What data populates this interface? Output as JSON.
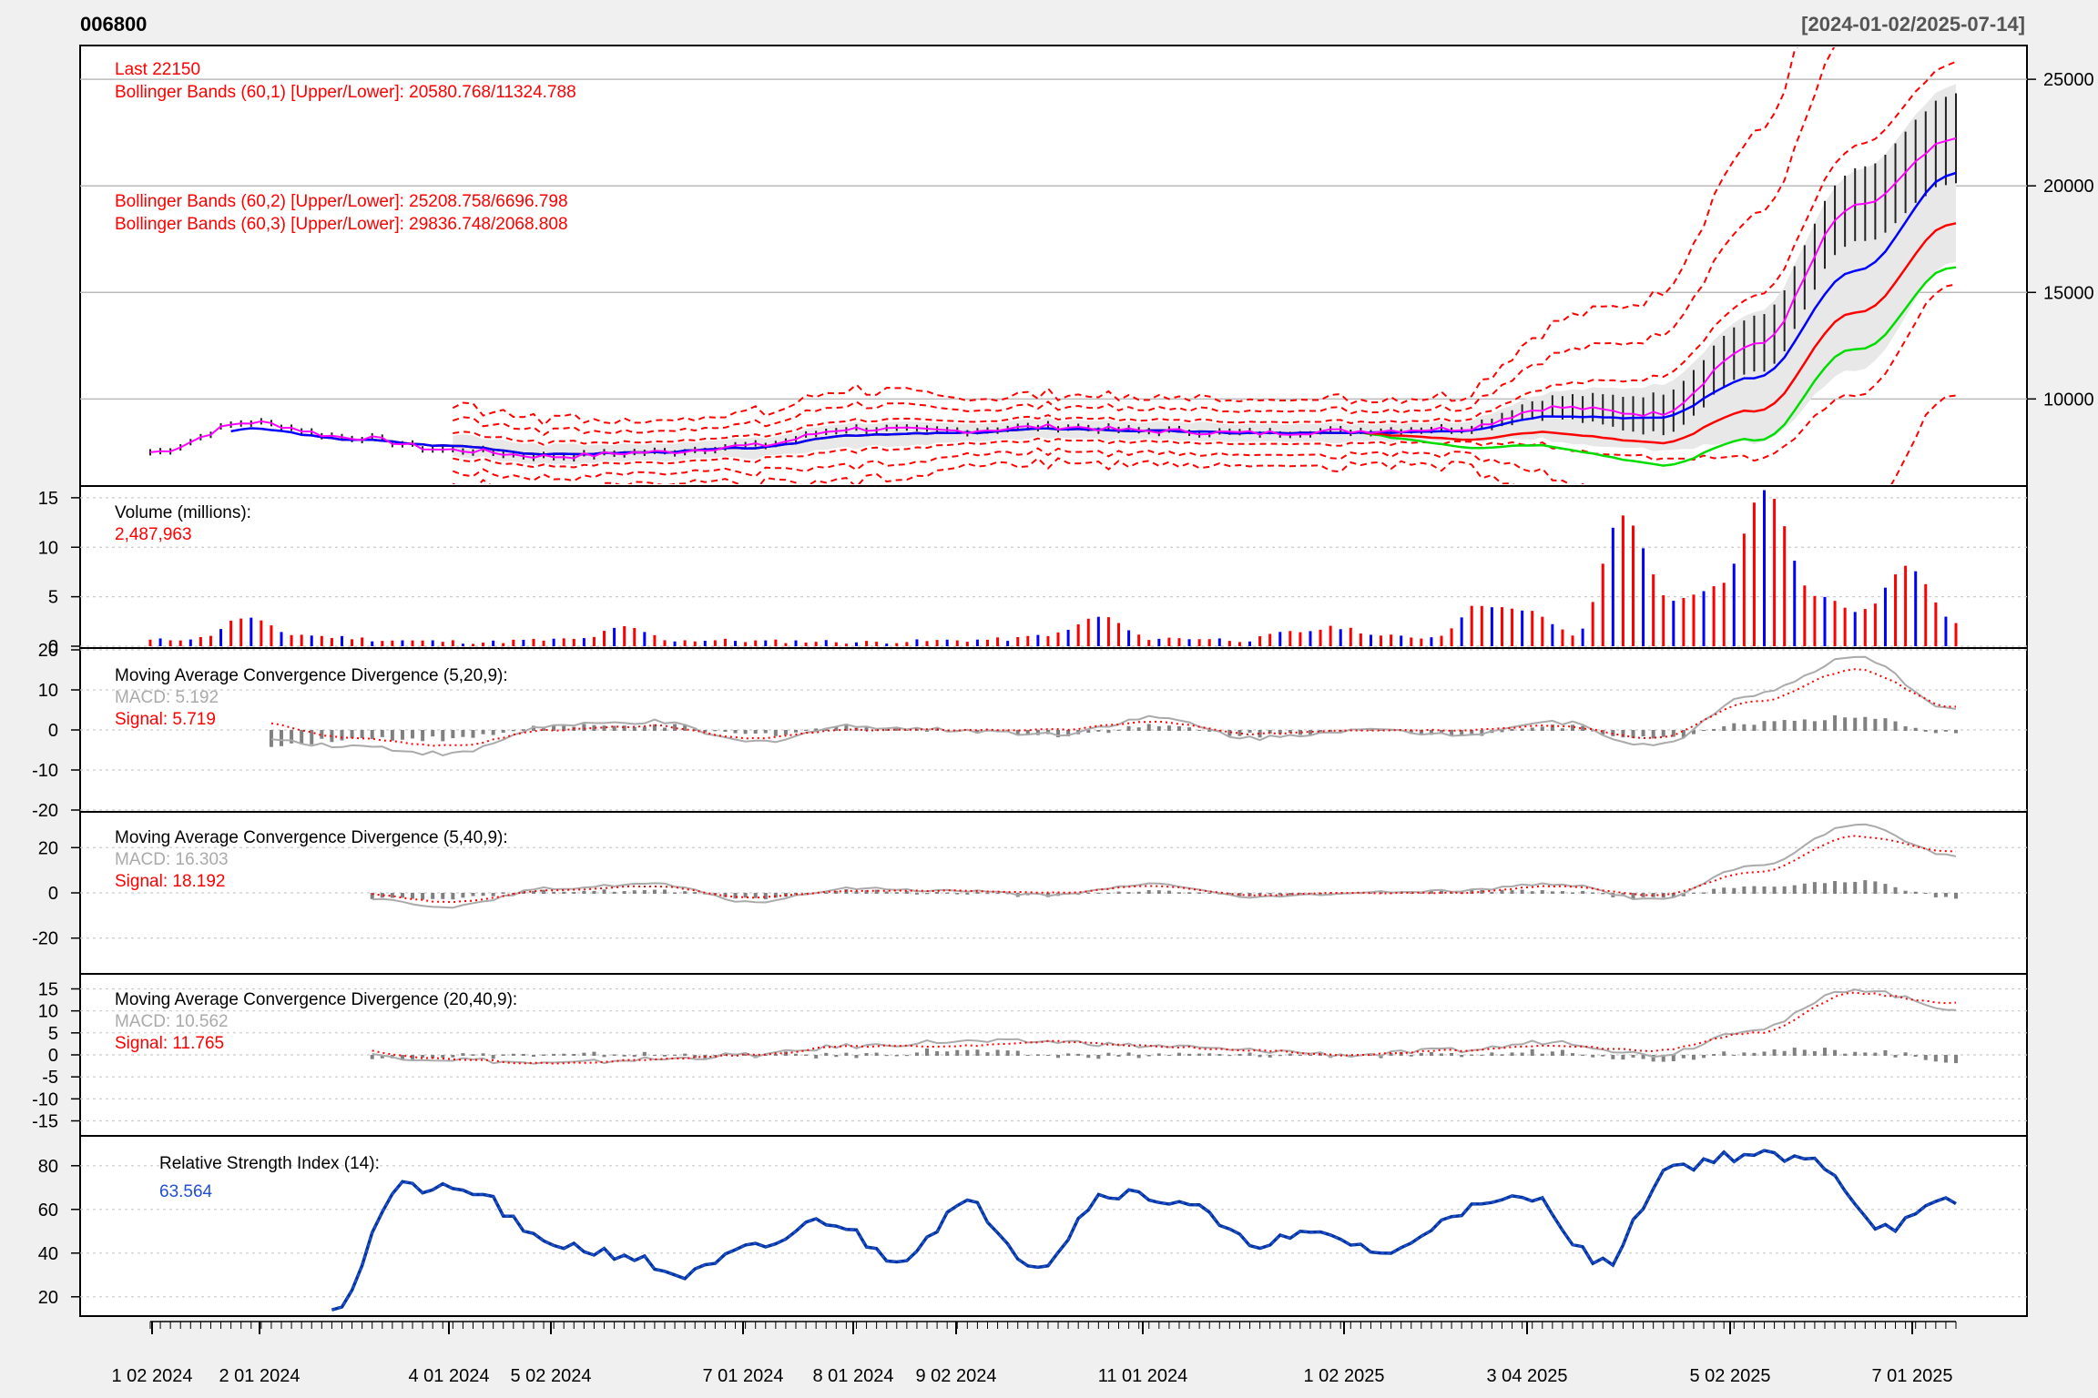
{
  "header": {
    "ticker": "006800",
    "date_range": "[2024-01-02/2025-07-14]"
  },
  "colors": {
    "red": "#ff0000",
    "blue": "#0000ff",
    "green": "#00dd00",
    "magenta": "#ff00ff",
    "up_bar": "#ff0000",
    "down_bar": "#0000ff",
    "macd_line": "#aaaaaa",
    "hist": "#808080",
    "rsi": "#1f4fd8"
  },
  "x_labels": [
    "1 02 2024",
    "2 01 2024",
    "4 01 2024",
    "5 02 2024",
    "7 01 2024",
    "8 01 2024",
    "9 02 2024",
    "11 01 2024",
    "1 02 2025",
    "3 04 2025",
    "5 02 2025",
    "7 01 2025"
  ],
  "chart_data": [
    {
      "type": "line",
      "panel": "price",
      "legend": {
        "last": "Last 22150",
        "bb1": "Bollinger Bands (60,1) [Upper/Lower]: 20580.768/11324.788",
        "bb2": "Bollinger Bands (60,2) [Upper/Lower]: 25208.758/6696.798",
        "bb3": "Bollinger Bands (60,3) [Upper/Lower]: 29836.748/2068.808"
      },
      "y_ticks": [
        "10000",
        "15000",
        "20000",
        "25000"
      ],
      "ylim": [
        6000,
        26500
      ],
      "x": [
        "2024-01",
        "2024-02",
        "2024-03",
        "2024-04",
        "2024-05",
        "2024-06",
        "2024-07",
        "2024-08",
        "2024-09",
        "2024-10",
        "2024-11",
        "2024-12",
        "2025-01",
        "2025-02",
        "2025-03",
        "2025-04",
        "2025-05",
        "2025-06",
        "2025-07"
      ],
      "series": [
        {
          "name": "Last",
          "values": [
            7500,
            8900,
            8200,
            7600,
            7300,
            7500,
            7800,
            8600,
            8500,
            8700,
            8500,
            8400,
            8500,
            8600,
            9600,
            9300,
            12500,
            19000,
            22150
          ]
        },
        {
          "name": "MA",
          "values": [
            7400,
            8600,
            8100,
            7800,
            7400,
            7500,
            7700,
            8300,
            8400,
            8600,
            8500,
            8400,
            8400,
            8500,
            9200,
            9100,
            11000,
            16000,
            20600
          ]
        }
      ]
    },
    {
      "type": "bar",
      "panel": "volume",
      "title": "Volume (millions):",
      "last_value": "2,487,963",
      "y_ticks": [
        "0",
        "5",
        "10",
        "15"
      ],
      "ylim": [
        0,
        16
      ],
      "values": [
        0.6,
        0.8,
        2.9,
        1.2,
        0.9,
        0.6,
        0.5,
        0.4,
        0.6,
        0.7,
        1.9,
        0.6,
        0.6,
        0.5,
        0.5,
        0.4,
        0.5,
        0.6,
        0.7,
        1.2,
        3.0,
        0.8,
        0.8,
        0.6,
        1.4,
        1.9,
        1.0,
        0.9,
        4.2,
        3.5,
        1.1,
        13.2,
        4.5,
        6.0,
        15.8,
        5.2,
        3.5,
        8.0,
        2.5
      ]
    },
    {
      "type": "line",
      "panel": "macd_5_20_9",
      "title": "Moving Average Convergence Divergence (5,20,9):",
      "macd_label": "MACD: 5.192",
      "signal_label": "Signal: 5.719",
      "y_ticks": [
        "-20",
        "-10",
        "0",
        "10",
        "20"
      ],
      "ylim": [
        -20,
        20
      ],
      "series": [
        {
          "name": "MACD",
          "values": [
            10,
            -2,
            -4,
            -6,
            1,
            2,
            -3,
            1,
            0,
            -1,
            3,
            -2,
            0,
            -1,
            2,
            -4,
            9,
            18,
            5.2
          ]
        },
        {
          "name": "Signal",
          "values": [
            9,
            2,
            -2,
            -4,
            0,
            1,
            -2,
            0,
            0,
            0,
            2,
            -1,
            0,
            0,
            1,
            -2,
            7,
            15,
            5.7
          ]
        }
      ]
    },
    {
      "type": "line",
      "panel": "macd_5_40_9",
      "title": "Moving Average Convergence Divergence (5,40,9):",
      "macd_label": "MACD: 16.303",
      "signal_label": "Signal: 18.192",
      "y_ticks": [
        "-20",
        "0",
        "20"
      ],
      "ylim": [
        -35,
        35
      ],
      "series": [
        {
          "name": "MACD",
          "values": [
            14,
            5,
            -2,
            -6,
            2,
            4,
            -4,
            2,
            1,
            -1,
            4,
            -2,
            0,
            1,
            4,
            -3,
            12,
            30,
            16.3
          ]
        },
        {
          "name": "Signal",
          "values": [
            12,
            7,
            0,
            -4,
            1,
            3,
            -2,
            1,
            1,
            0,
            3,
            -1,
            0,
            0,
            3,
            -1,
            9,
            25,
            18.2
          ]
        }
      ]
    },
    {
      "type": "line",
      "panel": "macd_20_40_9",
      "title": "Moving Average Convergence Divergence (20,40,9):",
      "macd_label": "MACD: 10.562",
      "signal_label": "Signal: 11.765",
      "y_ticks": [
        "-15",
        "-10",
        "-5",
        "0",
        "5",
        "10",
        "15"
      ],
      "ylim": [
        -18,
        18
      ],
      "series": [
        {
          "name": "MACD",
          "values": [
            9,
            3,
            0,
            -1,
            -2,
            -1,
            0,
            2,
            3,
            3,
            2,
            1,
            0,
            1,
            3,
            0,
            6,
            15,
            10.6
          ]
        },
        {
          "name": "Signal",
          "values": [
            8,
            4,
            1,
            -1,
            -2,
            -1,
            0,
            2,
            2,
            3,
            2,
            1,
            0,
            1,
            2,
            1,
            5,
            14,
            11.8
          ]
        }
      ]
    },
    {
      "type": "line",
      "panel": "rsi",
      "title": "Relative Strength Index (14):",
      "last_value": "63.564",
      "y_ticks": [
        "20",
        "40",
        "60",
        "80"
      ],
      "ylim": [
        12,
        92
      ],
      "values": [
        14,
        70,
        68,
        45,
        40,
        30,
        42,
        55,
        38,
        62,
        35,
        68,
        64,
        45,
        48,
        40,
        60,
        65,
        35,
        80,
        85,
        82,
        52,
        63.6
      ]
    }
  ]
}
